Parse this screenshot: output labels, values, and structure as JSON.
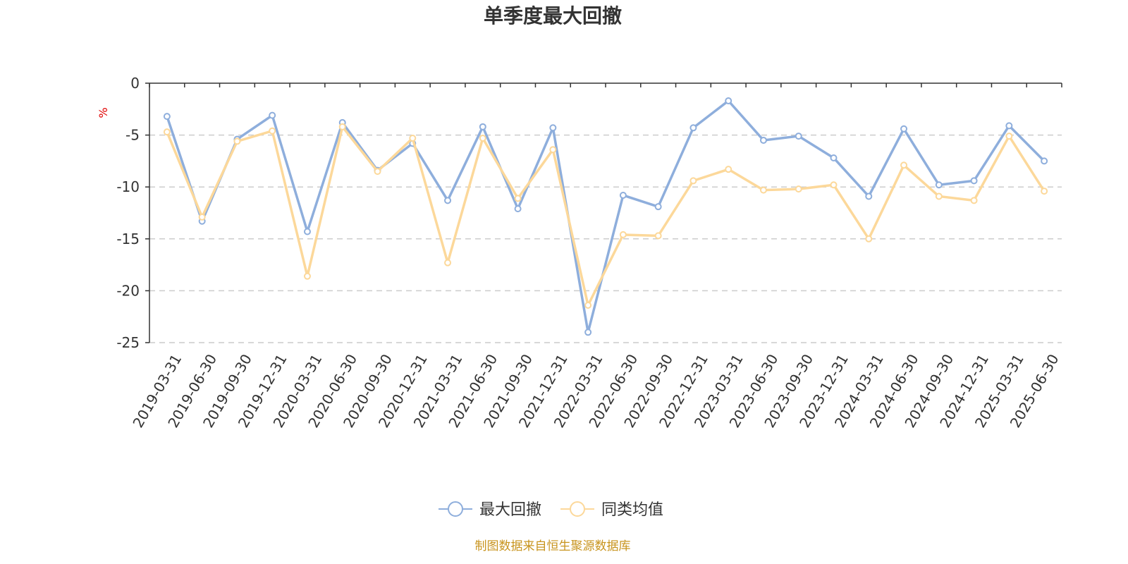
{
  "chart_data": {
    "type": "line",
    "title": "单季度最大回撤",
    "ylabel": "%",
    "ylim": [
      -25,
      0
    ],
    "yticks": [
      0,
      -5,
      -10,
      -15,
      -20,
      -25
    ],
    "grid": true,
    "legend_position": "bottom-center",
    "categories": [
      "2019-03-31",
      "2019-06-30",
      "2019-09-30",
      "2019-12-31",
      "2020-03-31",
      "2020-06-30",
      "2020-09-30",
      "2020-12-31",
      "2021-03-31",
      "2021-06-30",
      "2021-09-30",
      "2021-12-31",
      "2022-03-31",
      "2022-06-30",
      "2022-09-30",
      "2022-12-31",
      "2023-03-31",
      "2023-06-30",
      "2023-09-30",
      "2023-12-31",
      "2024-03-31",
      "2024-06-30",
      "2024-09-30",
      "2024-12-31",
      "2025-03-31",
      "2025-06-30"
    ],
    "series": [
      {
        "name": "最大回撤",
        "color": "#8eaedc",
        "values": [
          -3.2,
          -13.3,
          -5.4,
          -3.1,
          -14.3,
          -3.8,
          -8.4,
          -5.8,
          -11.3,
          -4.2,
          -12.1,
          -4.3,
          -24.0,
          -10.8,
          -11.9,
          -4.3,
          -1.7,
          -5.5,
          -5.1,
          -7.2,
          -10.9,
          -4.4,
          -9.8,
          -9.4,
          -4.1,
          -7.5
        ]
      },
      {
        "name": "同类均值",
        "color": "#fcd89a",
        "values": [
          -4.7,
          -12.9,
          -5.6,
          -4.6,
          -18.6,
          -4.2,
          -8.5,
          -5.3,
          -17.3,
          -5.3,
          -11.1,
          -6.4,
          -21.4,
          -14.6,
          -14.7,
          -9.4,
          -8.3,
          -10.3,
          -10.2,
          -9.8,
          -15.0,
          -7.9,
          -10.9,
          -11.3,
          -5.1,
          -10.4
        ]
      }
    ],
    "source": "制图数据来自恒生聚源数据库",
    "source_color": "#c8941e",
    "unit_color": "#e00000",
    "axis_color": "#333333",
    "grid_color": "#cccccc"
  }
}
